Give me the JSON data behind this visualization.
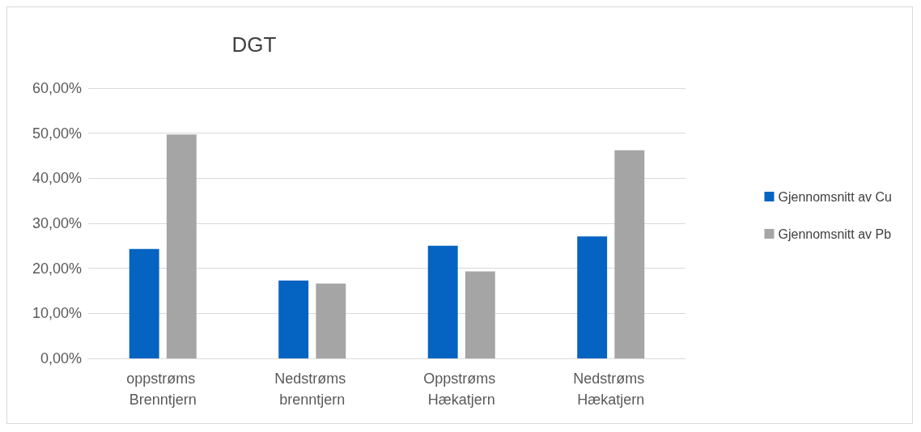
{
  "chart_data": {
    "type": "bar",
    "title": "DGT",
    "categories": [
      "oppstrøms Brenntjern",
      "Nedstrøms brenntjern",
      "Oppstrøms Hækatjern",
      "Nedstrøms Hækatjern"
    ],
    "series": [
      {
        "name": "Gjennomsnitt av Cu",
        "color": "#0563c1",
        "values": [
          24.3,
          17.3,
          25.0,
          27.1
        ]
      },
      {
        "name": "Gjennomsnitt av Pb",
        "color": "#a5a5a5",
        "values": [
          49.7,
          16.6,
          19.3,
          46.2
        ]
      }
    ],
    "ylim": [
      0,
      60
    ],
    "yticks": [
      {
        "value": 0,
        "label": "0,00%"
      },
      {
        "value": 10,
        "label": "10,00%"
      },
      {
        "value": 20,
        "label": "20,00%"
      },
      {
        "value": 30,
        "label": "30,00%"
      },
      {
        "value": 40,
        "label": "40,00%"
      },
      {
        "value": 50,
        "label": "50,00%"
      },
      {
        "value": 60,
        "label": "60,00%"
      }
    ],
    "grid": "y",
    "legend": "right"
  }
}
